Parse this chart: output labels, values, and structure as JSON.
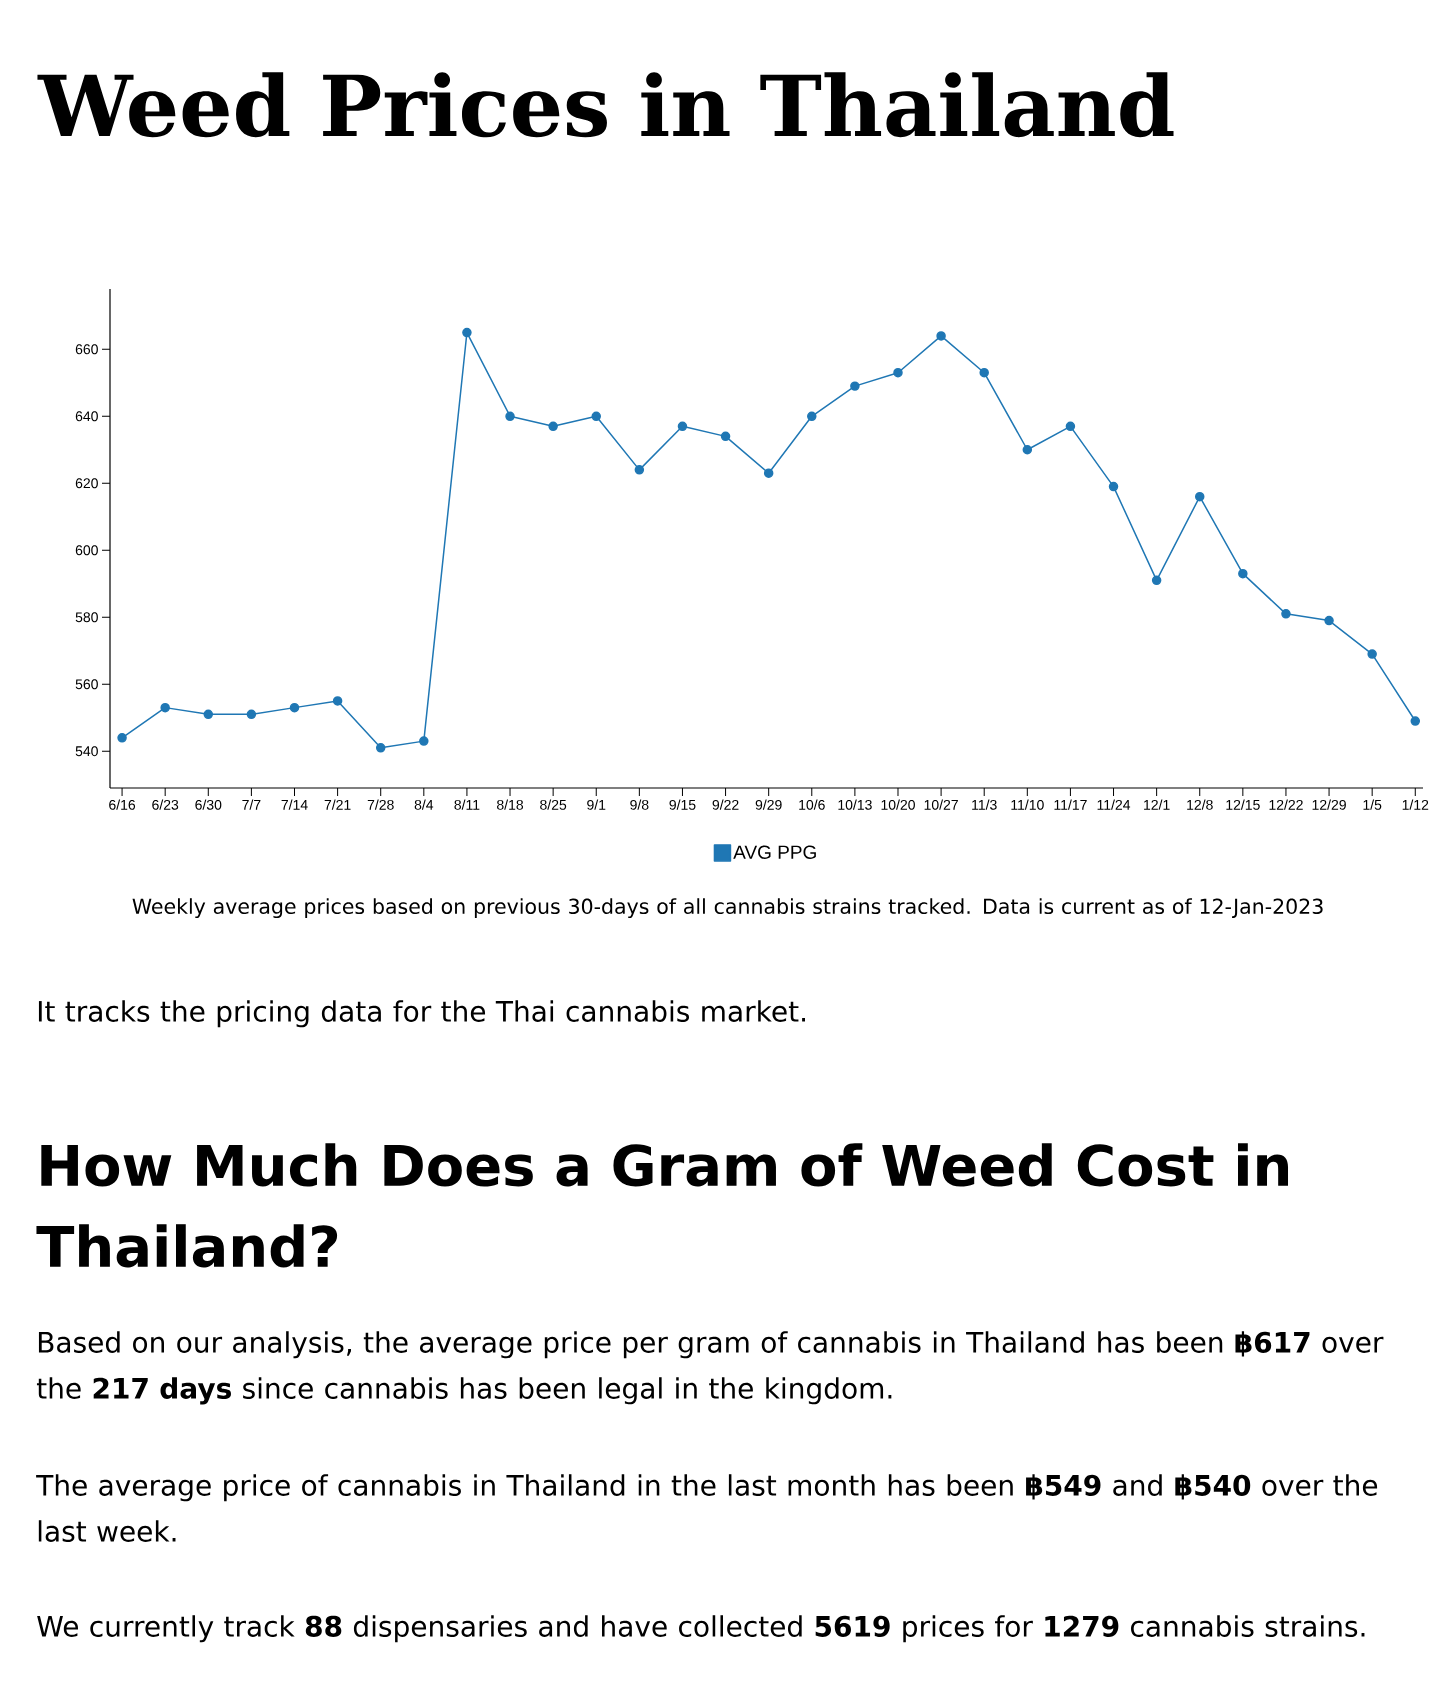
{
  "chart_data": {
    "type": "line",
    "title": "Weed Prices in Thailand",
    "categories": [
      "6/16",
      "6/23",
      "6/30",
      "7/7",
      "7/14",
      "7/21",
      "7/28",
      "8/4",
      "8/11",
      "8/18",
      "8/25",
      "9/1",
      "9/8",
      "9/15",
      "9/22",
      "9/29",
      "10/6",
      "10/13",
      "10/20",
      "10/27",
      "11/3",
      "11/10",
      "11/17",
      "11/24",
      "12/1",
      "12/8",
      "12/15",
      "12/22",
      "12/29",
      "1/5",
      "1/12"
    ],
    "series": [
      {
        "name": "AVG PPG",
        "color": "#1f77b4",
        "values": [
          544,
          553,
          551,
          551,
          553,
          555,
          541,
          543,
          665,
          640,
          637,
          640,
          624,
          637,
          634,
          623,
          640,
          649,
          653,
          664,
          653,
          630,
          637,
          619,
          591,
          616,
          593,
          581,
          579,
          569,
          549
        ]
      }
    ],
    "ylim": [
      529,
      678
    ],
    "yticks": [
      540,
      560,
      580,
      600,
      620,
      640,
      660
    ],
    "marker": "circle",
    "line_style": "solid",
    "legend": "bottom",
    "annotations": [
      "Weekly average prices based on previous 30-days of all cannabis strains tracked. Data is current as of 12-Jan-2023",
      "It tracks the pricing data for the Thai cannabis market.",
      "How Much Does a Gram of Weed Cost in Thailand?",
      "Based on our analysis, the average price per gram of cannabis in Thailand has been **฿617** over the **217 days** since cannabis has been legal in the kingdom.",
      "The average price of cannabis in Thailand in the last month has been **฿549** and **฿540** over the last week.",
      "We currently track **88** dispensaries and have collected **5619** prices for **1279** cannabis strains."
    ]
  }
}
